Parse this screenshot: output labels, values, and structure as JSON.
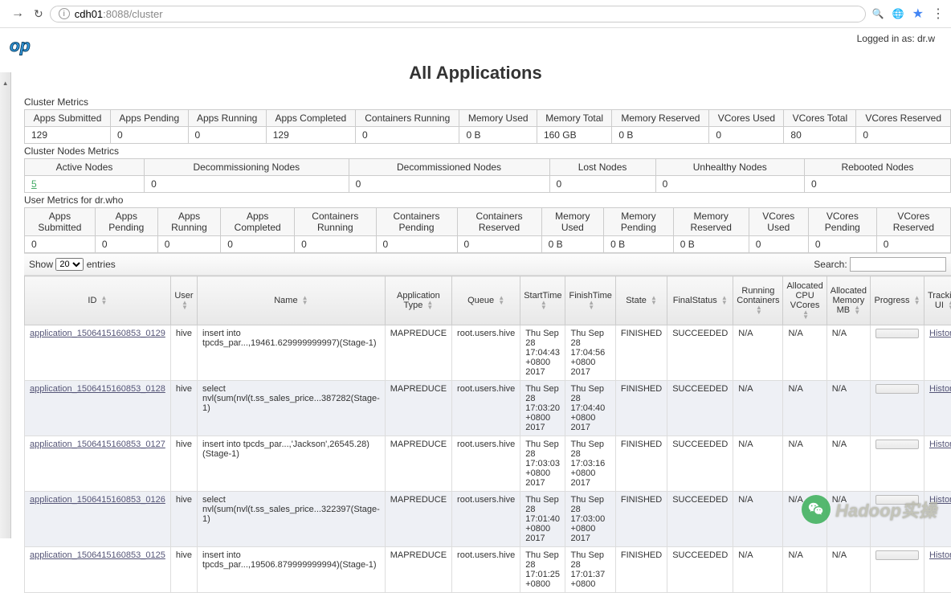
{
  "browser": {
    "url_host": "cdh01",
    "url_port_path": ":8088/cluster"
  },
  "header": {
    "logged_in_text": "Logged in as: dr.w",
    "page_title": "All Applications"
  },
  "cluster_metrics": {
    "label": "Cluster Metrics",
    "columns": [
      "Apps Submitted",
      "Apps Pending",
      "Apps Running",
      "Apps Completed",
      "Containers Running",
      "Memory Used",
      "Memory Total",
      "Memory Reserved",
      "VCores Used",
      "VCores Total",
      "VCores Reserved"
    ],
    "values": [
      "129",
      "0",
      "0",
      "129",
      "0",
      "0 B",
      "160 GB",
      "0 B",
      "0",
      "80",
      "0"
    ]
  },
  "nodes_metrics": {
    "label": "Cluster Nodes Metrics",
    "columns": [
      "Active Nodes",
      "Decommissioning Nodes",
      "Decommissioned Nodes",
      "Lost Nodes",
      "Unhealthy Nodes",
      "Rebooted Nodes"
    ],
    "values": [
      "5",
      "0",
      "0",
      "0",
      "0",
      "0"
    ],
    "active_is_link": true
  },
  "user_metrics": {
    "label": "User Metrics for dr.who",
    "columns": [
      "Apps Submitted",
      "Apps Pending",
      "Apps Running",
      "Apps Completed",
      "Containers Running",
      "Containers Pending",
      "Containers Reserved",
      "Memory Used",
      "Memory Pending",
      "Memory Reserved",
      "VCores Used",
      "VCores Pending",
      "VCores Reserved"
    ],
    "values": [
      "0",
      "0",
      "0",
      "0",
      "0",
      "0",
      "0",
      "0 B",
      "0 B",
      "0 B",
      "0",
      "0",
      "0"
    ]
  },
  "controls": {
    "show_label": "Show",
    "entries_label": "entries",
    "page_size": "20",
    "search_label": "Search:",
    "search_value": ""
  },
  "apps_table": {
    "columns": [
      "ID",
      "User",
      "Name",
      "Application Type",
      "Queue",
      "StartTime",
      "FinishTime",
      "State",
      "FinalStatus",
      "Running Containers",
      "Allocated CPU VCores",
      "Allocated Memory MB",
      "Progress",
      "Tracking UI"
    ],
    "rows": [
      {
        "id": "application_1506415160853_0129",
        "user": "hive",
        "name": "insert into tpcds_par...,19461.629999999997)(Stage-1)",
        "type": "MAPREDUCE",
        "queue": "root.users.hive",
        "start": "Thu Sep 28 17:04:43 +0800 2017",
        "finish": "Thu Sep 28 17:04:56 +0800 2017",
        "state": "FINISHED",
        "final": "SUCCEEDED",
        "rc": "N/A",
        "cpu": "N/A",
        "mem": "N/A",
        "ui": "History"
      },
      {
        "id": "application_1506415160853_0128",
        "user": "hive",
        "name": "select nvl(sum(nvl(t.ss_sales_price...387282(Stage-1)",
        "type": "MAPREDUCE",
        "queue": "root.users.hive",
        "start": "Thu Sep 28 17:03:20 +0800 2017",
        "finish": "Thu Sep 28 17:04:40 +0800 2017",
        "state": "FINISHED",
        "final": "SUCCEEDED",
        "rc": "N/A",
        "cpu": "N/A",
        "mem": "N/A",
        "ui": "History"
      },
      {
        "id": "application_1506415160853_0127",
        "user": "hive",
        "name": "insert into tpcds_par...,'Jackson',26545.28)(Stage-1)",
        "type": "MAPREDUCE",
        "queue": "root.users.hive",
        "start": "Thu Sep 28 17:03:03 +0800 2017",
        "finish": "Thu Sep 28 17:03:16 +0800 2017",
        "state": "FINISHED",
        "final": "SUCCEEDED",
        "rc": "N/A",
        "cpu": "N/A",
        "mem": "N/A",
        "ui": "History"
      },
      {
        "id": "application_1506415160853_0126",
        "user": "hive",
        "name": "select nvl(sum(nvl(t.ss_sales_price...322397(Stage-1)",
        "type": "MAPREDUCE",
        "queue": "root.users.hive",
        "start": "Thu Sep 28 17:01:40 +0800 2017",
        "finish": "Thu Sep 28 17:03:00 +0800 2017",
        "state": "FINISHED",
        "final": "SUCCEEDED",
        "rc": "N/A",
        "cpu": "N/A",
        "mem": "N/A",
        "ui": "History"
      },
      {
        "id": "application_1506415160853_0125",
        "user": "hive",
        "name": "insert into tpcds_par...,19506.879999999994)(Stage-1)",
        "type": "MAPREDUCE",
        "queue": "root.users.hive",
        "start": "Thu Sep 28 17:01:25 +0800",
        "finish": "Thu Sep 28 17:01:37 +0800",
        "state": "FINISHED",
        "final": "SUCCEEDED",
        "rc": "N/A",
        "cpu": "N/A",
        "mem": "N/A",
        "ui": "History"
      }
    ]
  },
  "watermark_text": "Hadoop实操",
  "colors": {
    "link": "#555577",
    "header_bg": "#f0f0f0",
    "row_alt": "#eef0f5",
    "logo_blue": "#3399dd",
    "wm_green": "#2aa84a"
  }
}
